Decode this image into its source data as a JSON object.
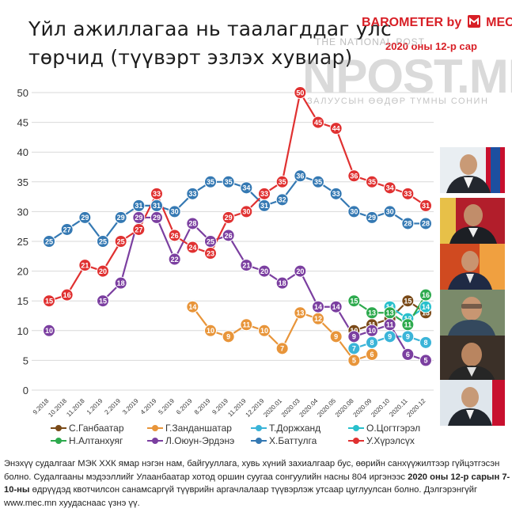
{
  "title": {
    "line1": "Үйл ажиллагаа нь таалагддаг улс",
    "line2": "төрчид (түүвэрт эзлэх хувиар)"
  },
  "brand": {
    "name": "BAROMETER by",
    "logo_text": "MEC",
    "subtitle": "2020 оны 12-р сар"
  },
  "watermark": {
    "top": "THE NATIONAL POST",
    "main": "NPOST.MN",
    "sub": "ЗАЛУУСЫН ӨӨДӨР ТҮМНЫ СОНИН"
  },
  "footer": {
    "part1": "Энэхүү судалгааг МЭК ХХК ямар нэгэн нам, байгууллага, хувь хүний захиалгаар бус, өөрийн санхүүжилтээр гүйцэтгэсэн болно. Судалгааны мэдээллийг Улаанбаатар хотод оршин суугаа сонгуулийн насны 804 иргэнээс ",
    "bold1": "2020 оны 12-р сарын 7-10-ны",
    "part2": " өдрүүдэд квотчилсон санамсаргүй түүврийн аргачлалаар түүвэрлэж утсаар цуглуулсан болно. Дэлгэрэнгүйг www.mec.mn хуудаснаас үзнэ үү."
  },
  "chart_data": {
    "type": "line",
    "title": "Үйл ажиллагаа нь таалагддаг улс төрчид (түүвэрт эзлэх хувиар)",
    "ylim": [
      0,
      50
    ],
    "yticks": [
      0,
      5,
      10,
      15,
      20,
      25,
      30,
      35,
      40,
      45,
      50
    ],
    "grid": true,
    "legend_position": "bottom",
    "categories": [
      "9.2018",
      "10.2018",
      "11.2018",
      "1.2019",
      "2.2019",
      "3.2019",
      "4.2019",
      "5.2019",
      "6.2019",
      "8.2019",
      "9.2019",
      "11.2019",
      "12.2019",
      "2020.01",
      "2020.03",
      "2020.04",
      "2020.05",
      "2020.08",
      "2020.09",
      "2020.10",
      "2020.11",
      "2020.12"
    ],
    "series": [
      {
        "name": "С.Ганбаатар",
        "color": "#7a4a18",
        "values": [
          null,
          null,
          null,
          null,
          null,
          null,
          null,
          null,
          null,
          null,
          null,
          null,
          null,
          null,
          null,
          null,
          null,
          10,
          11,
          12,
          15,
          13
        ]
      },
      {
        "name": "Г.Занданшатар",
        "color": "#e8953a",
        "values": [
          null,
          null,
          null,
          null,
          null,
          null,
          null,
          null,
          14,
          10,
          9,
          11,
          10,
          7,
          13,
          12,
          9,
          5,
          6,
          null,
          null,
          null
        ]
      },
      {
        "name": "Т.Доржханд",
        "color": "#3ab4d8",
        "values": [
          null,
          null,
          null,
          null,
          null,
          null,
          null,
          null,
          null,
          null,
          null,
          null,
          null,
          null,
          null,
          null,
          null,
          7,
          8,
          9,
          9,
          8
        ]
      },
      {
        "name": "О.Цогтгэрэл",
        "color": "#28c0cc",
        "values": [
          null,
          null,
          null,
          null,
          null,
          null,
          null,
          null,
          null,
          null,
          null,
          null,
          null,
          null,
          null,
          null,
          null,
          null,
          null,
          14,
          12,
          14
        ]
      },
      {
        "name": "Н.Алтанхуяг",
        "color": "#2eaa4e",
        "values": [
          null,
          null,
          null,
          null,
          null,
          null,
          null,
          null,
          null,
          null,
          null,
          null,
          null,
          null,
          null,
          null,
          null,
          15,
          13,
          13,
          11,
          16
        ]
      },
      {
        "name": "Л.Оюун-Эрдэнэ",
        "color": "#7b3fa0",
        "values": [
          10,
          null,
          null,
          15,
          18,
          29,
          29,
          22,
          28,
          25,
          26,
          21,
          20,
          18,
          20,
          14,
          14,
          9,
          10,
          11,
          6,
          5
        ]
      },
      {
        "name": "Х.Баттулга",
        "color": "#3579b3",
        "values": [
          25,
          27,
          29,
          25,
          29,
          31,
          31,
          30,
          33,
          35,
          35,
          34,
          31,
          32,
          36,
          35,
          33,
          30,
          29,
          30,
          28,
          28
        ]
      },
      {
        "name": "У.Хүрэлсүх",
        "color": "#e03131",
        "values": [
          15,
          16,
          21,
          20,
          25,
          27,
          33,
          26,
          24,
          23,
          29,
          30,
          33,
          35,
          50,
          45,
          44,
          36,
          35,
          34,
          33,
          31
        ]
      }
    ],
    "legend": [
      "С.Ганбаатар",
      "Г.Занданшатар",
      "Т.Доржханд",
      "О.Цогтгэрэл",
      "Н.Алтанхуяг",
      "Л.Оюун-Эрдэнэ",
      "Х.Баттулга",
      "У.Хүрэлсүх"
    ]
  }
}
